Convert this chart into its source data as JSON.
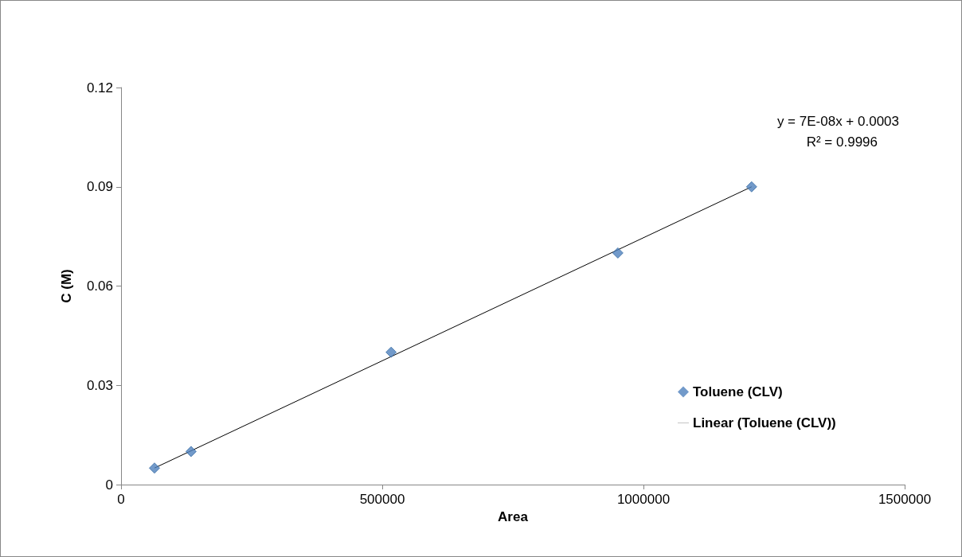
{
  "chart_data": {
    "type": "scatter",
    "xlabel": "Area",
    "ylabel": "C (M)",
    "xlim": [
      0,
      1500000
    ],
    "xticks": [
      0,
      500000,
      1000000,
      1500000
    ],
    "ylim": [
      0,
      0.12
    ],
    "yticks": [
      0,
      0.03,
      0.06,
      0.09,
      0.12
    ],
    "grid": false,
    "legend": "right",
    "marker": "diamond",
    "annotations": [
      "y = 7E-08x + 0.0003",
      "R² = 0.9996"
    ],
    "series": [
      {
        "name": "Toluene (CLV)",
        "color": "#4f81bd",
        "x": [
          64000,
          134000,
          517000,
          951000,
          1207000
        ],
        "values": [
          0.005,
          0.01,
          0.04,
          0.07,
          0.09
        ]
      },
      {
        "name": "Linear (Toluene (CLV))",
        "type": "line",
        "color": "#000000",
        "line_style": "solid",
        "marker": "none",
        "x": [
          64000,
          1207000
        ],
        "values": [
          0.005,
          0.09
        ]
      }
    ]
  }
}
